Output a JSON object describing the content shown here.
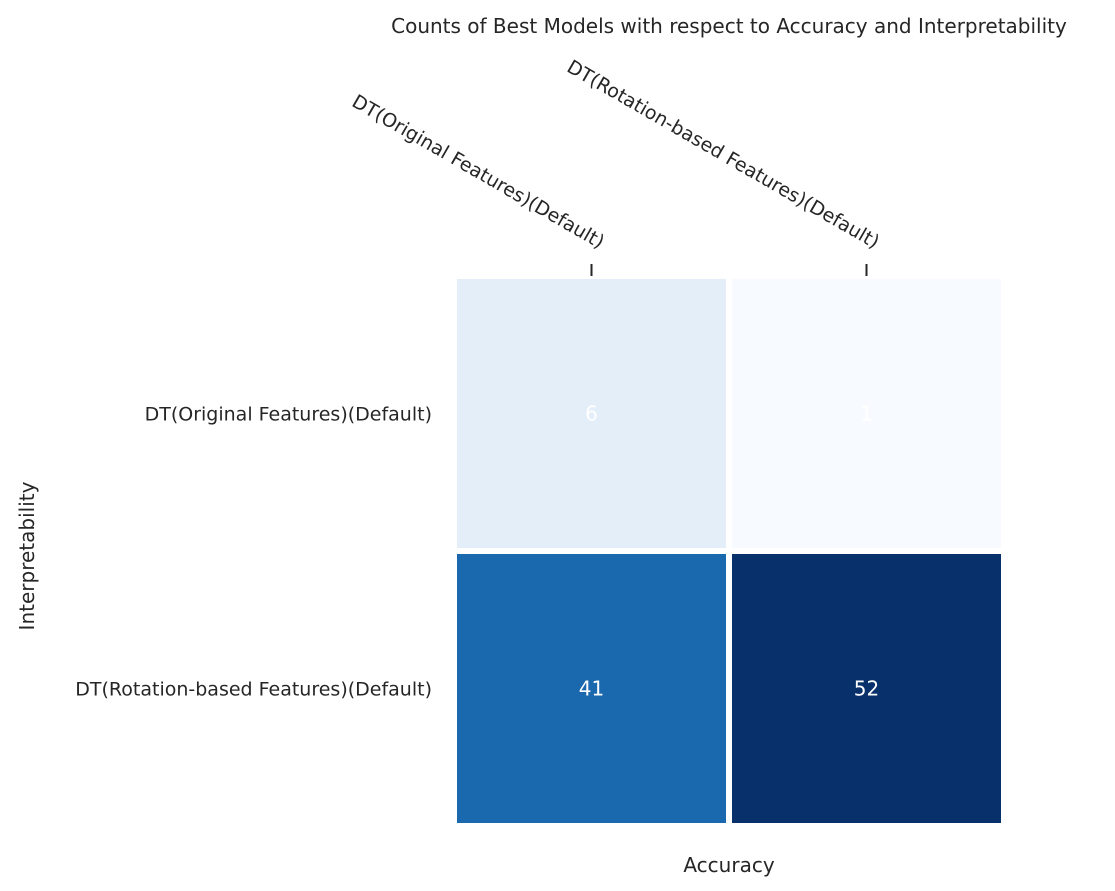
{
  "chart_data": {
    "type": "heatmap",
    "title": "Counts of Best Models with respect to Accuracy and Interpretability",
    "xlabel": "Accuracy",
    "ylabel": "Interpretability",
    "x_categories": [
      "DT(Original Features)(Default)",
      "DT(Rotation-based Features)(Default)"
    ],
    "y_categories": [
      "DT(Original Features)(Default)",
      "DT(Rotation-based Features)(Default)"
    ],
    "values": [
      [
        6,
        1
      ],
      [
        41,
        52
      ]
    ],
    "colormap": "Blues",
    "value_range": [
      1,
      52
    ],
    "x_tick_position": "top",
    "annotation_color": "#ffffff",
    "colors": {
      "cell_border": "#ffffff",
      "text": "#262626",
      "tick": "#262626"
    }
  }
}
